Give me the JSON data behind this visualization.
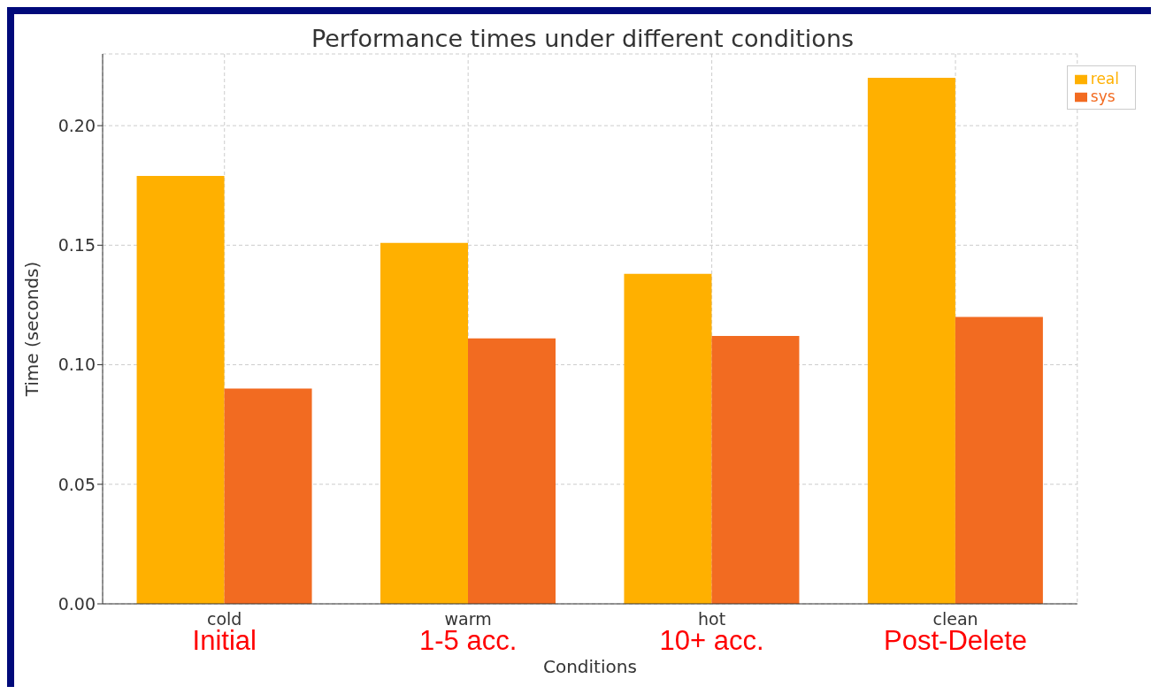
{
  "chart_data": {
    "type": "bar",
    "title": "Performance times under different conditions",
    "xlabel": "Conditions",
    "ylabel": "Time (seconds)",
    "categories": [
      "cold",
      "warm",
      "hot",
      "clean"
    ],
    "series": [
      {
        "name": "real",
        "color": "#ffb000",
        "values": [
          0.179,
          0.151,
          0.138,
          0.22
        ]
      },
      {
        "name": "sys",
        "color": "#f26b21",
        "values": [
          0.09,
          0.111,
          0.112,
          0.12
        ]
      }
    ],
    "ylim": [
      0,
      0.23
    ],
    "yticks": [
      {
        "value": 0,
        "label": "0.00"
      },
      {
        "value": 0.05,
        "label": "0.05"
      },
      {
        "value": 0.1,
        "label": "0.10"
      },
      {
        "value": 0.15,
        "label": "0.15"
      },
      {
        "value": 0.2,
        "label": "0.20"
      }
    ],
    "grid": true,
    "legend": "top right",
    "annotations": [
      "Initial",
      "1-5 acc.",
      "10+ acc.",
      "Post-Delete"
    ]
  }
}
